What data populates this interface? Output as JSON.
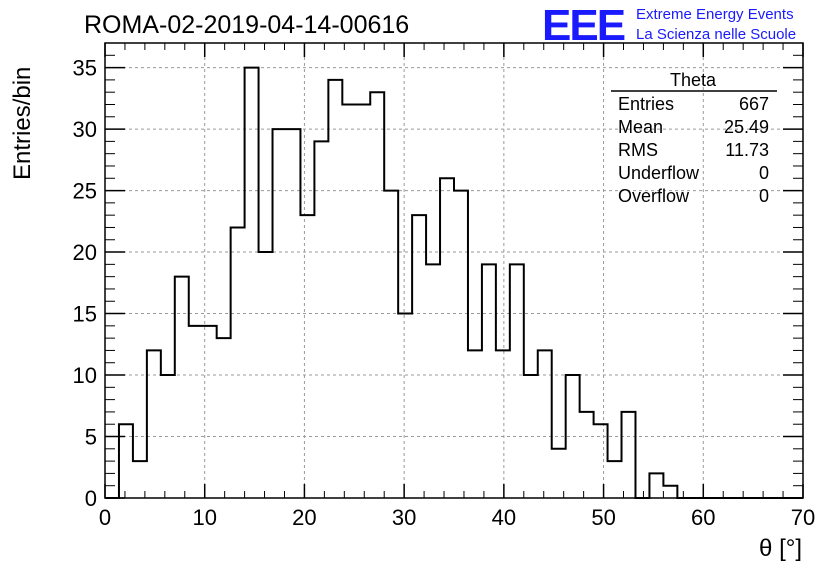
{
  "header": {
    "run_title": "ROMA-02-2019-04-14-00616",
    "logo": "EEE",
    "logo_line1": "Extreme Energy Events",
    "logo_line2": "La Scienza nelle Scuole",
    "logo_color": "#1a1aff"
  },
  "stats": {
    "title": "Theta",
    "rows": [
      {
        "label": "Entries",
        "value": "667"
      },
      {
        "label": "Mean",
        "value": "25.49"
      },
      {
        "label": "RMS",
        "value": "11.73"
      },
      {
        "label": "Underflow",
        "value": "0"
      },
      {
        "label": "Overflow",
        "value": "0"
      }
    ]
  },
  "chart_data": {
    "type": "histogram",
    "title": "ROMA-02-2019-04-14-00616",
    "xlabel": "θ [°]",
    "ylabel": "Entries/bin",
    "xlim": [
      0,
      70
    ],
    "ylim": [
      0,
      37
    ],
    "xticks": [
      0,
      10,
      20,
      30,
      40,
      50,
      60,
      70
    ],
    "yticks": [
      0,
      5,
      10,
      15,
      20,
      25,
      30,
      35
    ],
    "grid": true,
    "legend": "top-right",
    "bin_width": 1.4,
    "bin_edges_start": 0,
    "values": [
      0,
      6,
      3,
      12,
      10,
      18,
      14,
      14,
      13,
      22,
      35,
      20,
      30,
      30,
      23,
      29,
      34,
      32,
      32,
      33,
      25,
      15,
      23,
      19,
      26,
      25,
      12,
      19,
      12,
      19,
      10,
      12,
      4,
      10,
      7,
      6,
      3,
      7,
      0,
      2,
      1,
      0,
      0,
      0,
      0,
      0,
      0,
      0,
      0,
      0
    ]
  }
}
